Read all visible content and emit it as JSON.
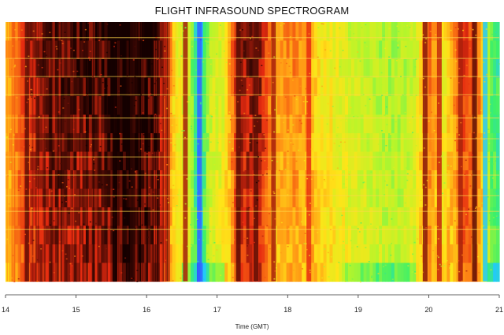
{
  "chart_data": {
    "type": "heatmap",
    "title": "FLIGHT INFRASOUND SPECTROGRAM",
    "xlabel": "Time (GMT)",
    "ylabel": "",
    "xlim": [
      14,
      21
    ],
    "x_ticks": [
      14,
      15,
      16,
      17,
      18,
      19,
      20,
      21
    ],
    "x_tick_labels": [
      "14",
      "15",
      "16",
      "17",
      "18",
      "19",
      "20",
      "21"
    ],
    "colormap": [
      "#3a2cff",
      "#22c8ff",
      "#3cf06a",
      "#b8f52a",
      "#ffe418",
      "#ff8a14",
      "#e62a10",
      "#150000"
    ],
    "intensity_profile": {
      "x": [
        14.0,
        14.3,
        14.6,
        15.0,
        15.4,
        15.7,
        16.0,
        16.2,
        16.4,
        16.6,
        16.75,
        16.9,
        17.1,
        17.3,
        17.6,
        17.8,
        18.1,
        18.5,
        19.0,
        19.5,
        19.8,
        20.0,
        20.2,
        20.5,
        20.7,
        20.9,
        21.0
      ],
      "level": [
        0.6,
        0.82,
        0.9,
        0.9,
        0.92,
        0.97,
        0.94,
        0.9,
        0.55,
        0.45,
        0.12,
        0.45,
        0.5,
        0.85,
        0.88,
        0.62,
        0.68,
        0.55,
        0.45,
        0.4,
        0.45,
        0.72,
        0.52,
        0.78,
        0.72,
        0.28,
        0.25
      ]
    },
    "vertical_bands": [
      {
        "x": 14.3,
        "level": 0.95
      },
      {
        "x": 15.55,
        "level": 1.0
      },
      {
        "x": 15.8,
        "level": 0.98
      },
      {
        "x": 16.3,
        "level": 0.95
      },
      {
        "x": 16.55,
        "level": 0.9
      },
      {
        "x": 16.75,
        "level": 0.05
      },
      {
        "x": 17.3,
        "level": 0.95
      },
      {
        "x": 17.55,
        "level": 0.95
      },
      {
        "x": 17.8,
        "level": 0.9
      },
      {
        "x": 18.3,
        "level": 0.85
      },
      {
        "x": 19.95,
        "level": 0.92
      },
      {
        "x": 20.15,
        "level": 0.88
      },
      {
        "x": 20.45,
        "level": 0.9
      },
      {
        "x": 20.65,
        "level": 0.95
      },
      {
        "x": 20.8,
        "level": 0.15
      }
    ],
    "tonal_lines_relative_height": [
      0.94,
      0.86,
      0.79,
      0.72,
      0.63,
      0.55,
      0.48,
      0.41,
      0.33,
      0.27,
      0.2
    ],
    "grid": false
  }
}
